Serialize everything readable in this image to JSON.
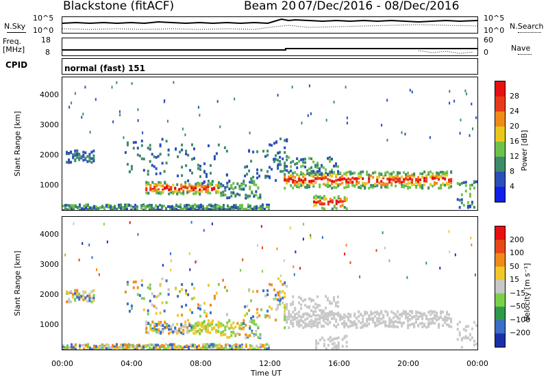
{
  "header": {
    "radar": "Blackstone (fitACF)",
    "beam": "Beam 20",
    "date_range": "07/Dec/2016 - 08/Dec/2016"
  },
  "top_panels": {
    "nsky_label": "N.Sky",
    "nsearch_label": "N.Search",
    "noise_ticks_left": [
      "10^5",
      "10^0"
    ],
    "noise_ticks_right": [
      "10^5",
      "10^0"
    ],
    "freq_label": "Freq.",
    "freq_unit": "[MHz]",
    "freq_ticks": [
      "18",
      "8"
    ],
    "nave_label": "Nave",
    "nave_ticks": [
      "60",
      "0"
    ],
    "cpid_label": "CPID",
    "cpid_value": "normal (fast) 151"
  },
  "chart_data": [
    {
      "type": "heatmap",
      "name": "power",
      "ylabel": "Slant Range [km]",
      "ylim": [
        180,
        4600
      ],
      "yticks": [
        "1000",
        "2000",
        "3000",
        "4000"
      ],
      "xlim": [
        0,
        24
      ],
      "colorbar_label": "Power [dB]",
      "colorbar_ticks": [
        "4",
        "8",
        "12",
        "16",
        "20",
        "24",
        "28"
      ],
      "colorbar_colors": [
        "#1020e8",
        "#2a4fb8",
        "#3e8b6a",
        "#6ec24a",
        "#e8c81a",
        "#f08a18",
        "#e83a18",
        "#e81010"
      ]
    },
    {
      "type": "heatmap",
      "name": "velocity",
      "ylabel": "Slant Range [km]",
      "ylim": [
        180,
        4600
      ],
      "yticks": [
        "1000",
        "2000",
        "3000",
        "4000"
      ],
      "xlim": [
        0,
        24
      ],
      "xticks": [
        "00:00",
        "04:00",
        "08:00",
        "12:00",
        "16:00",
        "20:00",
        "00:00"
      ],
      "xlabel": "Time UT",
      "colorbar_label": "Velocity [m s⁻¹]",
      "colorbar_ticks": [
        "200",
        "100",
        "50",
        "15",
        "−15",
        "−50",
        "−100",
        "−200"
      ],
      "colorbar_colors": [
        "#1a2fa8",
        "#3a6ec8",
        "#2e9a4a",
        "#7ad04a",
        "#c8c8c8",
        "#f0c828",
        "#f08a18",
        "#e84818",
        "#e81010"
      ]
    }
  ]
}
